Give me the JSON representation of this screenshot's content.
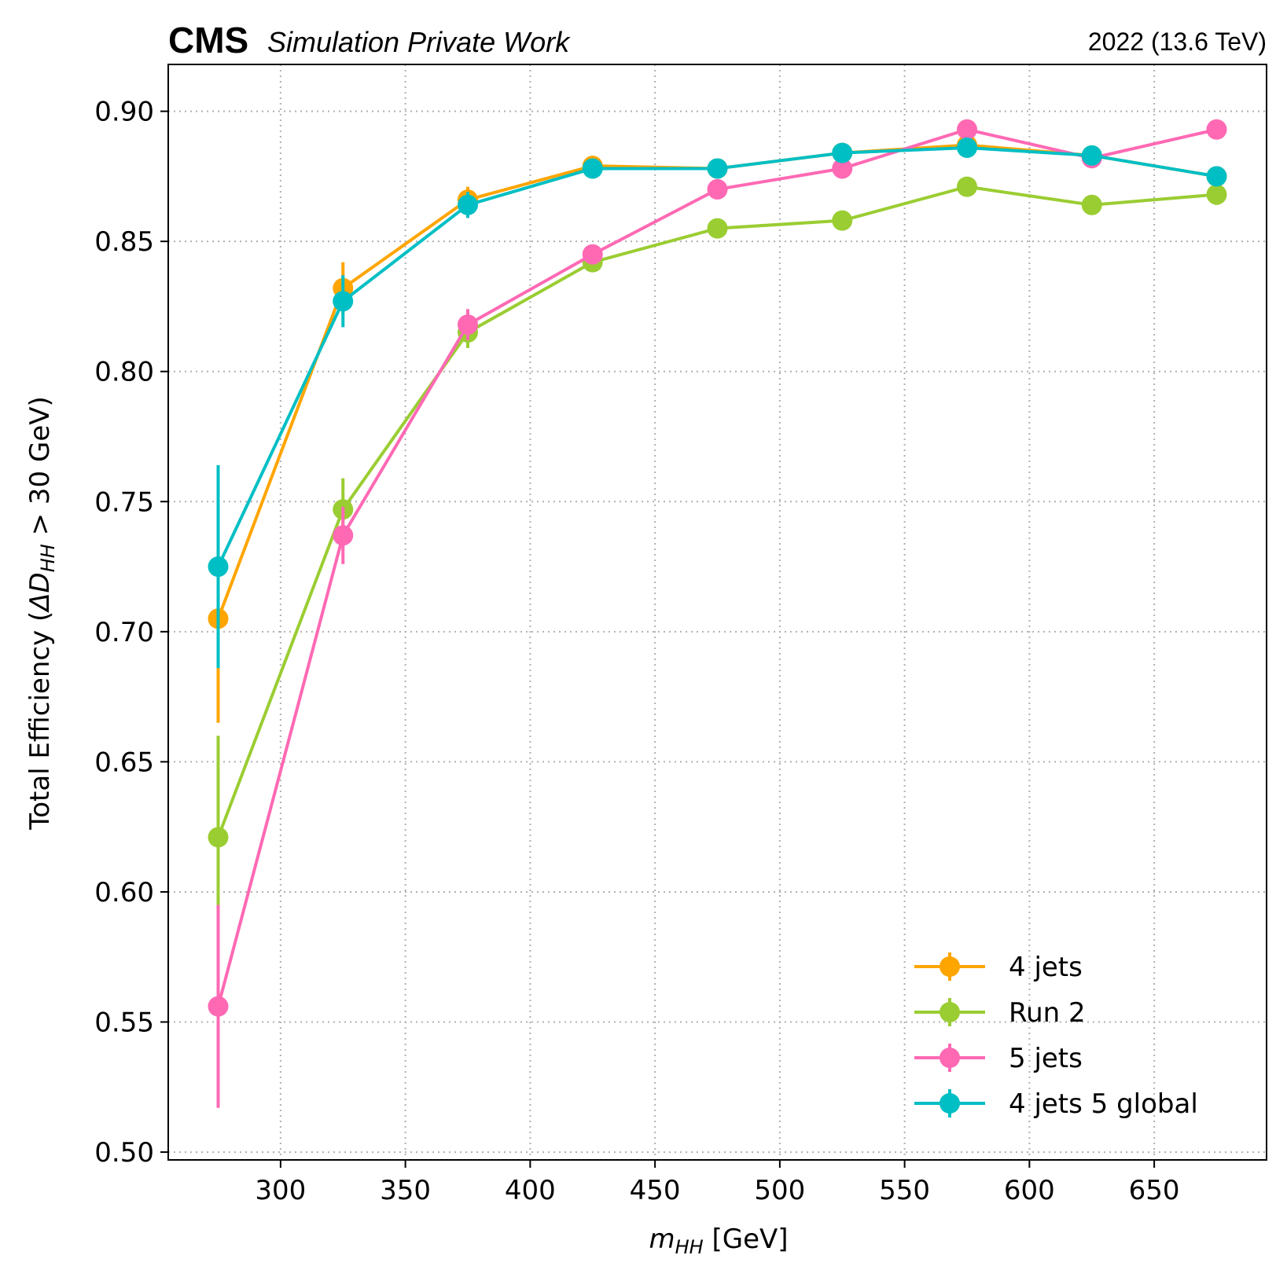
{
  "header": {
    "experiment": "CMS",
    "extra": "Simulation Private Work",
    "lumi": "2022 (13.6 TeV)"
  },
  "chart_data": {
    "type": "line",
    "xlabel_var": "m",
    "xlabel_sub": "HH",
    "xlabel_unit": " [GeV]",
    "ylabel_pre": "Total Efficiency (",
    "ylabel_delta": "ΔD",
    "ylabel_sub": "HH",
    "ylabel_post": " > 30 GeV)",
    "xlim": [
      255,
      695
    ],
    "ylim": [
      0.497,
      0.918
    ],
    "x_ticks": [
      300,
      350,
      400,
      450,
      500,
      550,
      600,
      650
    ],
    "y_ticks": [
      0.5,
      0.55,
      0.6,
      0.65,
      0.7,
      0.75,
      0.8,
      0.85,
      0.9
    ],
    "y_tick_labels": [
      "0.50",
      "0.55",
      "0.60",
      "0.65",
      "0.70",
      "0.75",
      "0.80",
      "0.85",
      "0.90"
    ],
    "x_tick_labels": [
      "300",
      "350",
      "400",
      "450",
      "500",
      "550",
      "600",
      "650"
    ],
    "grid": true,
    "legend_position": "lower-right",
    "x": [
      275,
      325,
      375,
      425,
      475,
      525,
      575,
      625,
      675
    ],
    "series": [
      {
        "name": "4 jets",
        "color": "#ffa500",
        "values": [
          0.705,
          0.832,
          0.866,
          0.879,
          0.878,
          0.884,
          0.887,
          0.883,
          0.875
        ],
        "errors": [
          0.04,
          0.01,
          0.005,
          0.003,
          0.003,
          0.002,
          0.002,
          0.002,
          0.003
        ]
      },
      {
        "name": "Run 2",
        "color": "#9acd32",
        "values": [
          0.621,
          0.747,
          0.815,
          0.842,
          0.855,
          0.858,
          0.871,
          0.864,
          0.868
        ],
        "errors": [
          0.039,
          0.012,
          0.006,
          0.003,
          0.003,
          0.003,
          0.003,
          0.003,
          0.004
        ]
      },
      {
        "name": "5 jets",
        "color": "#ff69b4",
        "values": [
          0.556,
          0.737,
          0.818,
          0.845,
          0.87,
          0.878,
          0.893,
          0.882,
          0.893
        ],
        "errors": [
          0.039,
          0.011,
          0.006,
          0.003,
          0.003,
          0.003,
          0.002,
          0.002,
          0.002
        ]
      },
      {
        "name": "4 jets 5 global",
        "color": "#00bfc4",
        "values": [
          0.725,
          0.827,
          0.864,
          0.878,
          0.878,
          0.884,
          0.886,
          0.883,
          0.875
        ],
        "errors": [
          0.039,
          0.01,
          0.005,
          0.003,
          0.002,
          0.002,
          0.002,
          0.002,
          0.003
        ]
      }
    ]
  }
}
